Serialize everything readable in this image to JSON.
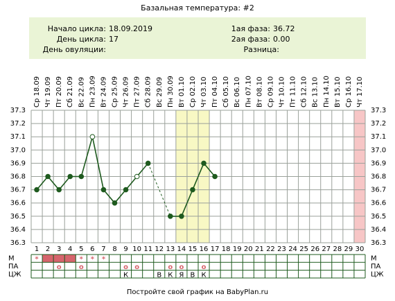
{
  "chart_data": {
    "type": "line",
    "title": "Базальная температура: #2",
    "info": [
      {
        "label": "Начало цикла:",
        "value": "18.09.2019"
      },
      {
        "label": "День цикла:",
        "value": "17"
      },
      {
        "label": "День овуляции:",
        "value": null
      },
      {
        "label": "1ая фаза:",
        "value": "36.72"
      },
      {
        "label": "2ая фаза:",
        "value": "0.00"
      },
      {
        "label": "Разница:",
        "value": null
      }
    ],
    "categories": [
      "Ср 18.09",
      "Чт 19.09",
      "Пт 20.09",
      "Сб 21.09",
      "Вс 22.09",
      "Пн 23.09",
      "Вт 24.09",
      "Ср 25.09",
      "Чт 26.09",
      "Пт 27.09",
      "Сб 28.09",
      "Вс 29.09",
      "Пн 30.09",
      "Вт 01.10",
      "Ср 02.10",
      "Чт 03.10",
      "Пт 04.10",
      "Сб 05.10",
      "Вс 06.10",
      "Пн 07.10",
      "Вт 08.10",
      "Ср 09.10",
      "Чт 10.10",
      "Пт 11.10",
      "Сб 12.10",
      "Вс 13.10",
      "Пн 14.10",
      "Вт 15.10",
      "Ср 16.10",
      "Чт 17.10"
    ],
    "day_numbers": [
      1,
      2,
      3,
      4,
      5,
      6,
      7,
      8,
      9,
      10,
      11,
      12,
      13,
      14,
      15,
      16,
      17,
      18,
      19,
      20,
      21,
      22,
      23,
      24,
      25,
      26,
      27,
      28,
      29,
      30
    ],
    "values": [
      36.7,
      36.8,
      36.7,
      36.8,
      36.8,
      37.1,
      36.7,
      36.6,
      36.7,
      36.8,
      36.9,
      null,
      36.5,
      36.5,
      36.7,
      36.9,
      36.8,
      null,
      null,
      null,
      null,
      null,
      null,
      null,
      null,
      null,
      null,
      null,
      null,
      null
    ],
    "color": "#1e5a1e",
    "open_points": [
      6,
      10
    ],
    "highlight_days": [
      14,
      15,
      16
    ],
    "highlight_color": "#f8f8c4",
    "end_days": [
      30
    ],
    "end_color": "#f7c6c6",
    "ylim": [
      36.3,
      37.3
    ],
    "yticks": [
      36.3,
      36.4,
      36.5,
      36.6,
      36.7,
      36.8,
      36.9,
      {
        "value": 37,
        "label": "37.0"
      },
      37.1,
      37.2,
      37.3
    ],
    "grid": true,
    "rows": [
      {
        "label": "М",
        "filled_days": [
          2,
          3,
          4
        ],
        "cells": [
          "*",
          null,
          null,
          null,
          "*",
          "*",
          "*",
          null,
          null,
          null,
          null,
          null,
          null,
          null,
          null,
          null,
          null,
          null,
          null,
          null,
          null,
          null,
          null,
          null,
          null,
          null,
          null,
          null,
          null,
          null
        ]
      },
      {
        "label": "ПА",
        "cells": [
          null,
          null,
          "о",
          null,
          "о",
          null,
          null,
          null,
          "о",
          "о",
          null,
          null,
          "о",
          "о",
          null,
          "о",
          null,
          null,
          null,
          null,
          null,
          null,
          null,
          null,
          null,
          null,
          null,
          null,
          null,
          null
        ]
      },
      {
        "label": "ЦЖ",
        "cells": [
          null,
          null,
          null,
          null,
          null,
          null,
          null,
          null,
          "К",
          null,
          null,
          "В",
          "К",
          "Я",
          "В",
          "К",
          null,
          null,
          null,
          null,
          null,
          null,
          null,
          null,
          null,
          null,
          null,
          null,
          null,
          null
        ]
      }
    ],
    "footer": "Постройте свой график на BabyPlan.ru"
  }
}
